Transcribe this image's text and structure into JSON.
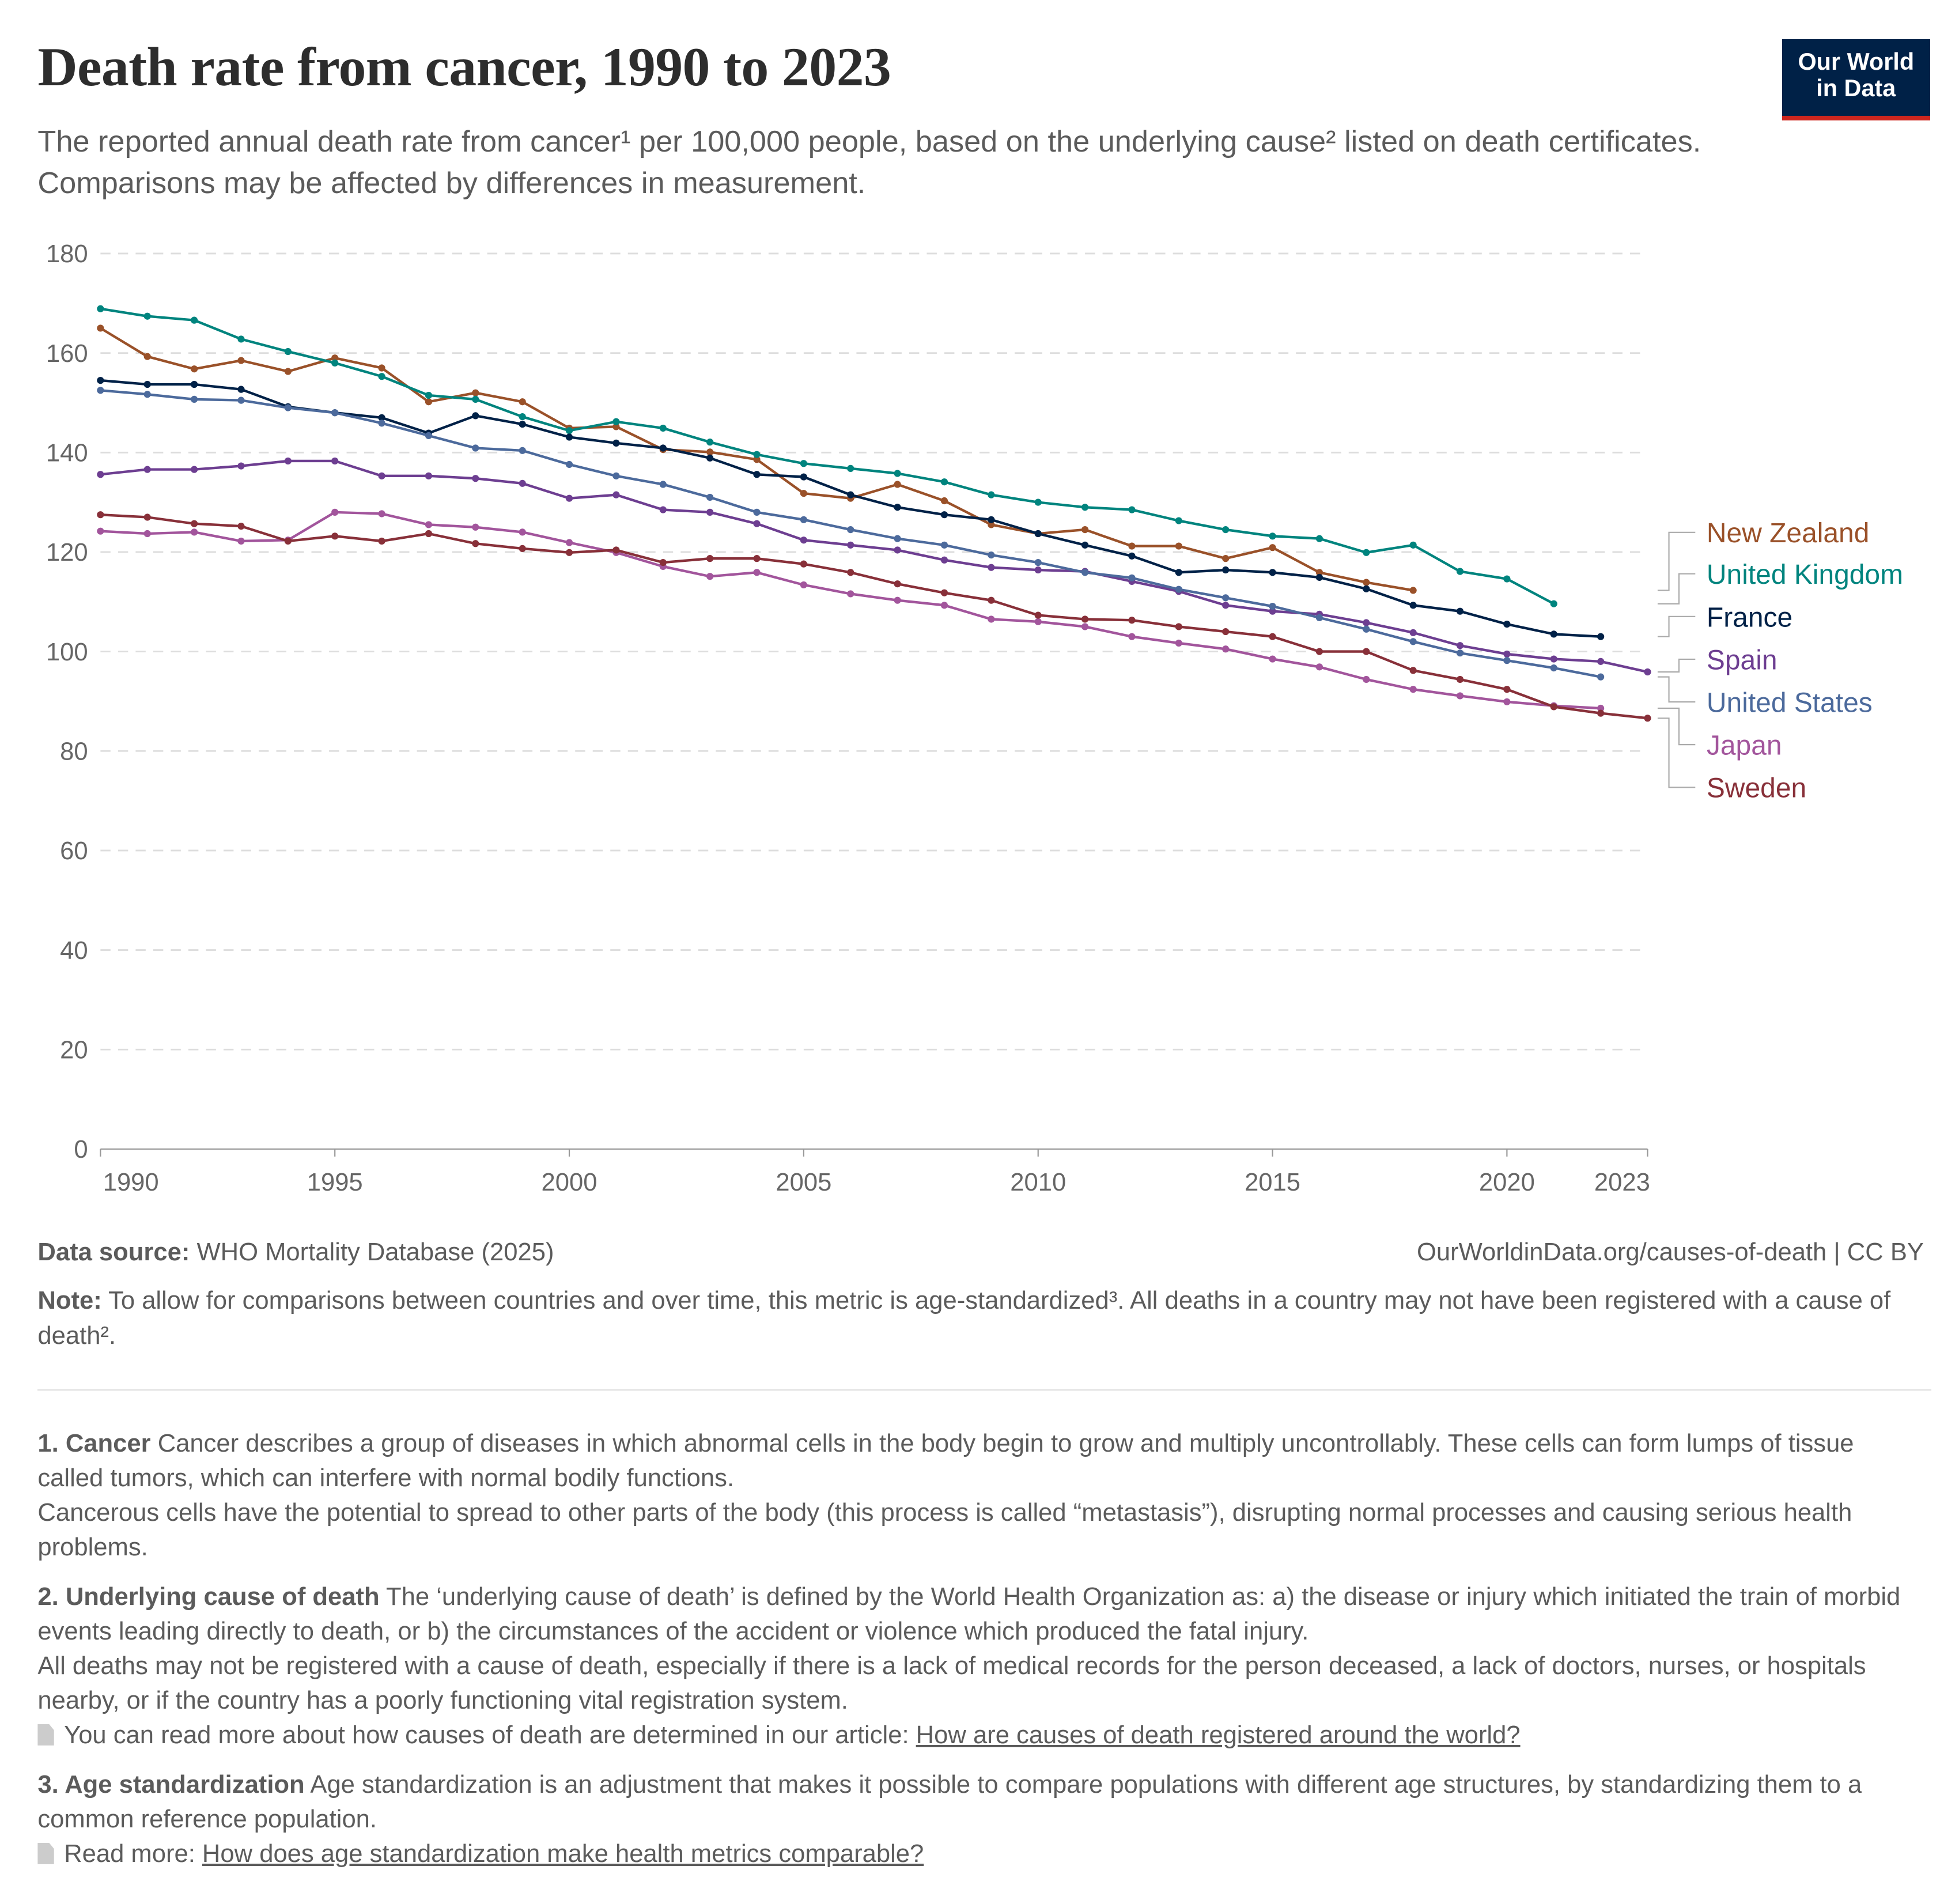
{
  "header": {
    "title": "Death rate from cancer, 1990 to 2023",
    "subtitle": "The reported annual death rate from cancer¹ per 100,000 people, based on the underlying cause² listed on death certificates. Comparisons may be affected by differences in measurement.",
    "logo_line1": "Our World",
    "logo_line2": "in Data"
  },
  "chart_data": {
    "type": "line",
    "title": "Death rate from cancer, 1990 to 2023",
    "xlabel": "",
    "ylabel": "",
    "xlim": [
      1990,
      2023
    ],
    "ylim": [
      0,
      180
    ],
    "yticks": [
      0,
      20,
      40,
      60,
      80,
      100,
      120,
      140,
      160,
      180
    ],
    "xticks": [
      1990,
      1995,
      2000,
      2005,
      2010,
      2015,
      2020,
      2023
    ],
    "grid": "horizontal-dashed",
    "legend": "right",
    "series": [
      {
        "name": "New Zealand",
        "color": "#9a5129",
        "start": 1990,
        "values": [
          165,
          159.3,
          156.8,
          158.5,
          156.3,
          159,
          157,
          150.2,
          152,
          150.2,
          144.9,
          145.2,
          140.6,
          140.1,
          138.6,
          131.8,
          130.8,
          133.6,
          130.3,
          125.5,
          123.7,
          124.5,
          121.2,
          121.2,
          118.7,
          120.9,
          115.9,
          113.9,
          112.3
        ]
      },
      {
        "name": "United Kingdom",
        "color": "#00847e",
        "start": 1990,
        "values": [
          168.9,
          167.4,
          166.6,
          162.8,
          160.3,
          158,
          155.3,
          151.5,
          150.7,
          147.2,
          144.4,
          146.2,
          144.9,
          142.1,
          139.6,
          137.8,
          136.8,
          135.8,
          134.1,
          131.5,
          130,
          129,
          128.5,
          126.3,
          124.5,
          123.2,
          122.7,
          119.9,
          121.4,
          116.1,
          114.6,
          109.6
        ]
      },
      {
        "name": "France",
        "color": "#002147",
        "start": 1990,
        "values": [
          154.5,
          153.7,
          153.7,
          152.7,
          149.2,
          148,
          147,
          143.9,
          147.4,
          145.7,
          143.1,
          141.9,
          140.9,
          138.9,
          135.6,
          135.1,
          131.5,
          129,
          127.5,
          126.5,
          123.7,
          121.4,
          119.2,
          115.9,
          116.4,
          115.9,
          114.9,
          112.6,
          109.3,
          108.1,
          105.5,
          103.5,
          103
        ]
      },
      {
        "name": "Spain",
        "color": "#6d3e91",
        "start": 1990,
        "values": [
          135.6,
          136.6,
          136.6,
          137.3,
          138.3,
          138.3,
          135.3,
          135.3,
          134.8,
          133.8,
          130.8,
          131.5,
          128.5,
          128,
          125.7,
          122.4,
          121.4,
          120.4,
          118.4,
          116.9,
          116.4,
          116.1,
          114.1,
          112.1,
          109.3,
          108.1,
          107.5,
          105.8,
          103.8,
          101.2,
          99.5,
          98.5,
          98,
          95.9
        ]
      },
      {
        "name": "United States",
        "color": "#4c6a9c",
        "start": 1990,
        "values": [
          152.5,
          151.7,
          150.7,
          150.5,
          149,
          148,
          145.9,
          143.4,
          140.9,
          140.4,
          137.6,
          135.3,
          133.6,
          131,
          128,
          126.5,
          124.5,
          122.7,
          121.4,
          119.4,
          117.9,
          115.9,
          114.8,
          112.5,
          110.8,
          109.1,
          106.8,
          104.5,
          102,
          99.7,
          98.2,
          96.7,
          94.9
        ]
      },
      {
        "name": "Japan",
        "color": "#a2559c",
        "start": 1990,
        "values": [
          124.2,
          123.7,
          124,
          122.2,
          122.4,
          128,
          127.7,
          125.5,
          125,
          124,
          121.9,
          119.9,
          117.1,
          115.1,
          115.9,
          113.4,
          111.6,
          110.3,
          109.3,
          106.5,
          106,
          105,
          103,
          101.7,
          100.5,
          98.5,
          96.9,
          94.4,
          92.4,
          91.1,
          89.9,
          89.1,
          88.6
        ]
      },
      {
        "name": "Sweden",
        "color": "#883039",
        "start": 1990,
        "values": [
          127.5,
          127,
          125.7,
          125.2,
          122.2,
          123.2,
          122.2,
          123.7,
          121.7,
          120.7,
          119.9,
          120.4,
          117.9,
          118.7,
          118.7,
          117.6,
          115.9,
          113.6,
          111.8,
          110.3,
          107.3,
          106.5,
          106.3,
          105,
          104,
          103,
          100,
          100,
          96.2,
          94.4,
          92.4,
          88.9,
          87.6,
          86.6
        ]
      }
    ]
  },
  "footer": {
    "source_label": "Data source:",
    "source_text": "WHO Mortality Database (2025)",
    "credit": "OurWorldinData.org/causes-of-death | CC BY",
    "note_label": "Note:",
    "note_text": "To allow for comparisons between countries and over time, this metric is age-standardized³. All deaths in a country may not have been registered with a cause of death²."
  },
  "footnotes": [
    {
      "label": "1. Cancer",
      "p1": "Cancer describes a group of diseases in which abnormal cells in the body begin to grow and multiply uncontrollably. These cells can form lumps of tissue called tumors, which can interfere with normal bodily functions.",
      "p2": "Cancerous cells have the potential to spread to other parts of the body (this process is called “metastasis”), disrupting normal processes and causing serious health problems."
    },
    {
      "label": "2. Underlying cause of death",
      "p1": "The ‘underlying cause of death’ is defined by the World Health Organization as: a) the disease or injury which initiated the train of morbid events leading directly to death, or b) the circumstances of the accident or violence which produced the fatal injury.",
      "p2": "All deaths may not be registered with a cause of death, especially if there is a lack of medical records for the person deceased, a lack of doctors, nurses, or hospitals nearby, or if the country has a poorly functioning vital registration system.",
      "read_text": "You can read more about how causes of death are determined in our article:",
      "link": "How are causes of death registered around the world?"
    },
    {
      "label": "3. Age standardization",
      "p1": "Age standardization is an adjustment that makes it possible to compare populations with different age structures, by standardizing them to a common reference population.",
      "read_text": "Read more:",
      "link": "How does age standardization make health metrics comparable?"
    }
  ]
}
